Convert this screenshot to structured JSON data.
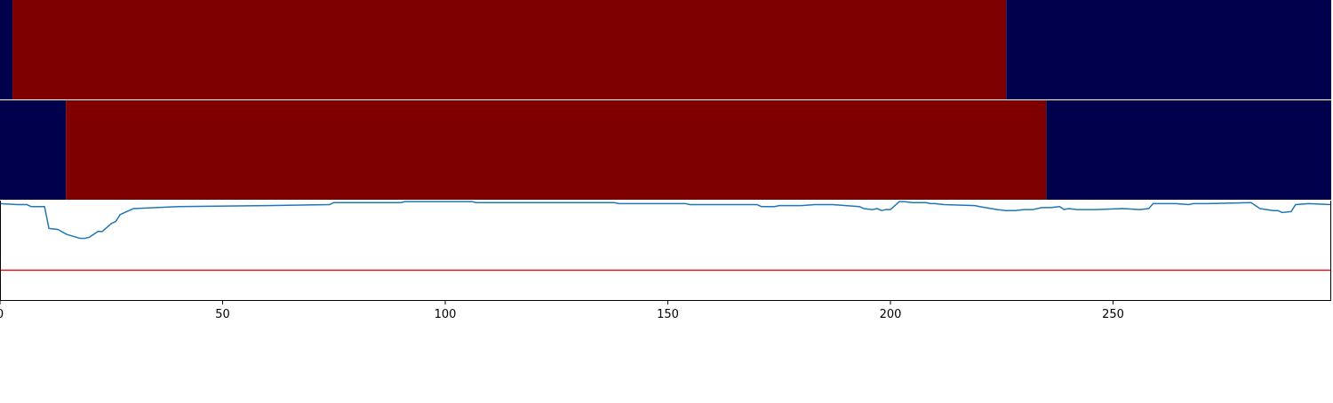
{
  "chart_data": {
    "type": "line",
    "colors": {
      "state_on": "#7f0000",
      "state_off": "#00004c",
      "series": "#1f77b4",
      "threshold": "#e31a1c",
      "axis": "#000000"
    },
    "xlim": [
      0,
      299
    ],
    "x_ticks": [
      0,
      50,
      100,
      150,
      200,
      250
    ],
    "tick_labels": [
      "0",
      "50",
      "100",
      "150",
      "200",
      "250"
    ],
    "state_rows": [
      {
        "segments": [
          {
            "start": 0,
            "end": 2.8,
            "state": "off"
          },
          {
            "start": 2.8,
            "end": 226,
            "state": "on"
          },
          {
            "start": 226,
            "end": 299,
            "state": "off"
          }
        ]
      },
      {
        "segments": [
          {
            "start": 0,
            "end": 14.8,
            "state": "off"
          },
          {
            "start": 14.8,
            "end": 235,
            "state": "on"
          },
          {
            "start": 235,
            "end": 299,
            "state": "off"
          }
        ]
      }
    ],
    "line_panel": {
      "ylim": [
        0,
        1
      ],
      "threshold": 0.3,
      "series": [
        {
          "x": [
            0,
            4,
            6,
            7,
            10,
            11,
            13,
            15,
            18,
            19,
            20,
            22,
            23,
            25,
            26,
            27,
            28,
            30,
            35,
            40,
            60,
            74,
            75,
            90,
            91,
            106,
            107,
            138,
            139,
            154,
            155,
            170,
            171,
            174,
            175,
            180,
            183,
            185,
            187,
            190,
            193,
            194,
            196,
            197,
            198,
            199,
            200,
            202,
            203,
            205,
            208,
            209,
            210,
            212,
            219,
            220,
            224,
            226,
            228,
            230,
            232,
            234,
            236,
            238,
            239,
            240,
            242,
            246,
            252,
            256,
            258,
            259,
            264,
            267,
            268,
            271,
            281,
            283,
            286,
            287,
            288,
            290,
            291,
            294,
            299
          ],
          "y": [
            0.97,
            0.96,
            0.96,
            0.94,
            0.94,
            0.72,
            0.71,
            0.66,
            0.62,
            0.62,
            0.63,
            0.69,
            0.69,
            0.77,
            0.79,
            0.86,
            0.88,
            0.92,
            0.93,
            0.94,
            0.95,
            0.96,
            0.98,
            0.98,
            0.99,
            0.99,
            0.98,
            0.98,
            0.97,
            0.97,
            0.96,
            0.96,
            0.94,
            0.94,
            0.95,
            0.95,
            0.96,
            0.96,
            0.96,
            0.95,
            0.94,
            0.92,
            0.91,
            0.92,
            0.9,
            0.91,
            0.91,
            0.99,
            0.99,
            0.98,
            0.98,
            0.97,
            0.97,
            0.96,
            0.95,
            0.94,
            0.91,
            0.9,
            0.9,
            0.91,
            0.91,
            0.93,
            0.93,
            0.94,
            0.91,
            0.92,
            0.91,
            0.91,
            0.92,
            0.91,
            0.92,
            0.97,
            0.97,
            0.96,
            0.97,
            0.97,
            0.98,
            0.92,
            0.9,
            0.9,
            0.88,
            0.89,
            0.96,
            0.97,
            0.96
          ]
        }
      ]
    }
  }
}
